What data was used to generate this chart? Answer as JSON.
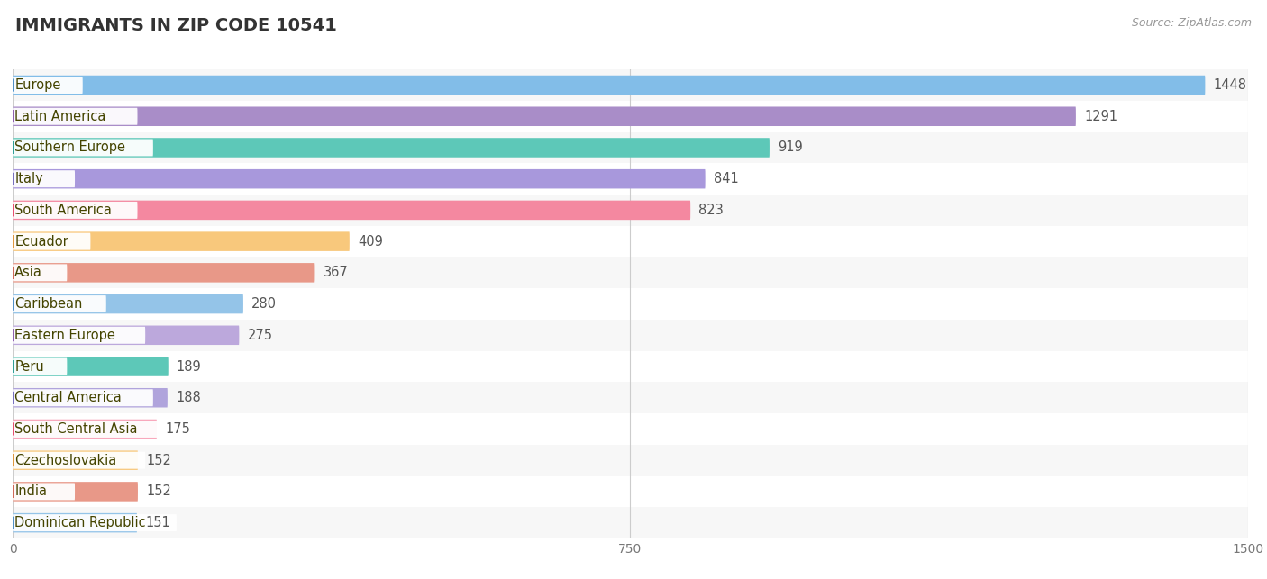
{
  "title": "IMMIGRANTS IN ZIP CODE 10541",
  "source": "Source: ZipAtlas.com",
  "categories": [
    "Europe",
    "Latin America",
    "Southern Europe",
    "Italy",
    "South America",
    "Ecuador",
    "Asia",
    "Caribbean",
    "Eastern Europe",
    "Peru",
    "Central America",
    "South Central Asia",
    "Czechoslovakia",
    "India",
    "Dominican Republic"
  ],
  "values": [
    1448,
    1291,
    919,
    841,
    823,
    409,
    367,
    280,
    275,
    189,
    188,
    175,
    152,
    152,
    151
  ],
  "bar_colors": [
    "#82BDE8",
    "#A98DC8",
    "#5DC8B8",
    "#A898DC",
    "#F488A0",
    "#F8C87C",
    "#E89888",
    "#94C4E8",
    "#BCA8DC",
    "#5DC8B8",
    "#B0A4DC",
    "#F8A8BC",
    "#F8C87C",
    "#E89888",
    "#94C4E8"
  ],
  "dot_colors": [
    "#5090C8",
    "#9060B0",
    "#30A098",
    "#7870C0",
    "#E85070",
    "#E09840",
    "#D06858",
    "#5090C8",
    "#9060B0",
    "#30A098",
    "#7870C0",
    "#E85070",
    "#E09840",
    "#D06858",
    "#5090C8"
  ],
  "row_bg_color": "#F7F7F7",
  "white_bg": "#FFFFFF",
  "xlim": [
    0,
    1500
  ],
  "xticks": [
    0,
    750,
    1500
  ],
  "bar_height": 0.62,
  "label_fontsize": 10.5,
  "title_fontsize": 14,
  "value_label_color": "#555555",
  "label_text_color": "#444400"
}
